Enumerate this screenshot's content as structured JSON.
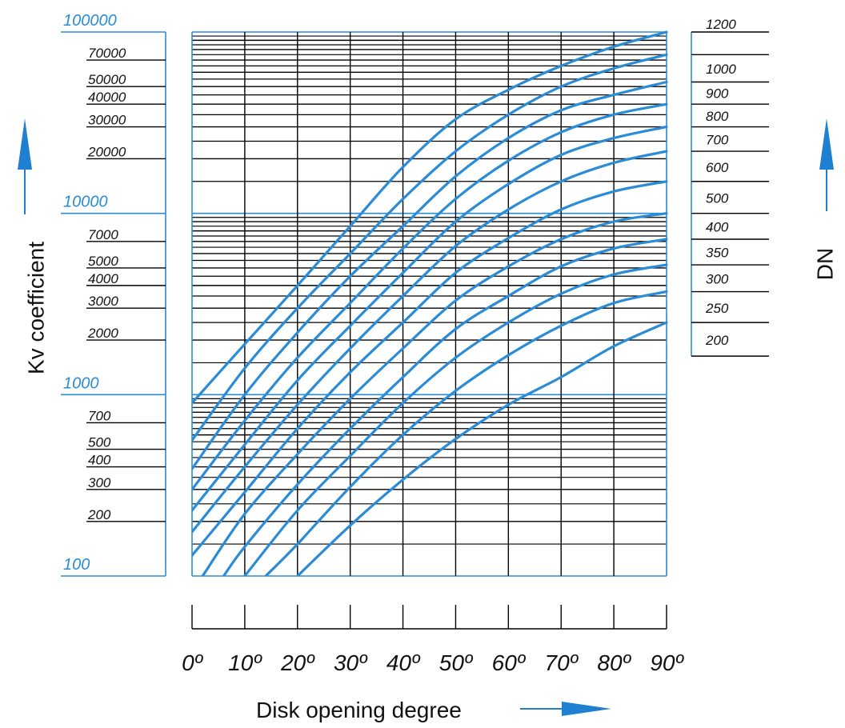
{
  "colors": {
    "curve": "#2a8bd6",
    "decade_line": "#2a8bd6",
    "grid": "#000000",
    "arrow": "#1f7fd0"
  },
  "chart_data": {
    "type": "line",
    "xlabel": "Disk opening degree",
    "ylabel": "Kv coefficient",
    "right_label": "DN",
    "x_scale": "linear",
    "y_scale": "log",
    "xlim": [
      0,
      90
    ],
    "ylim": [
      100,
      100000
    ],
    "x_ticks": [
      0,
      10,
      20,
      30,
      40,
      50,
      60,
      70,
      80,
      90
    ],
    "x_tick_labels": [
      "0º",
      "10º",
      "20º",
      "30º",
      "40º",
      "50º",
      "60º",
      "70º",
      "80º",
      "90º"
    ],
    "y_decade_labels": [
      {
        "value": 100,
        "label": "100"
      },
      {
        "value": 1000,
        "label": "1000"
      },
      {
        "value": 10000,
        "label": "10000"
      },
      {
        "value": 100000,
        "label": "100000"
      }
    ],
    "y_minor_labels": [
      {
        "value": 200,
        "label": "200"
      },
      {
        "value": 300,
        "label": "300"
      },
      {
        "value": 400,
        "label": "400"
      },
      {
        "value": 500,
        "label": "500"
      },
      {
        "value": 700,
        "label": "700"
      },
      {
        "value": 2000,
        "label": "2000"
      },
      {
        "value": 3000,
        "label": "3000"
      },
      {
        "value": 4000,
        "label": "4000"
      },
      {
        "value": 5000,
        "label": "5000"
      },
      {
        "value": 7000,
        "label": "7000"
      },
      {
        "value": 20000,
        "label": "20000"
      },
      {
        "value": 30000,
        "label": "30000"
      },
      {
        "value": 40000,
        "label": "40000"
      },
      {
        "value": 50000,
        "label": "50000"
      },
      {
        "value": 70000,
        "label": "70000"
      }
    ],
    "grid": true,
    "dn_labels": [
      {
        "label": "1200",
        "kv": 100000
      },
      {
        "label": "1000",
        "kv": 75000
      },
      {
        "label": "900",
        "kv": 53000
      },
      {
        "label": "800",
        "kv": 40000
      },
      {
        "label": "700",
        "kv": 30000
      },
      {
        "label": "600",
        "kv": 22000
      },
      {
        "label": "500",
        "kv": 15000
      },
      {
        "label": "400",
        "kv": 10000
      },
      {
        "label": "350",
        "kv": 7200
      },
      {
        "label": "300",
        "kv": 5200
      },
      {
        "label": "250",
        "kv": 3700
      },
      {
        "label": "200",
        "kv": 2500
      }
    ],
    "series": [
      {
        "name": "1200",
        "points": [
          [
            0,
            900
          ],
          [
            10,
            1900
          ],
          [
            20,
            4000
          ],
          [
            30,
            8500
          ],
          [
            40,
            18000
          ],
          [
            50,
            33000
          ],
          [
            60,
            48000
          ],
          [
            70,
            65000
          ],
          [
            80,
            83000
          ],
          [
            90,
            100000
          ]
        ]
      },
      {
        "name": "1000",
        "points": [
          [
            0,
            560
          ],
          [
            10,
            1400
          ],
          [
            20,
            3000
          ],
          [
            30,
            6000
          ],
          [
            40,
            12000
          ],
          [
            50,
            22000
          ],
          [
            60,
            35000
          ],
          [
            70,
            50000
          ],
          [
            80,
            63000
          ],
          [
            90,
            75000
          ]
        ]
      },
      {
        "name": "900",
        "points": [
          [
            0,
            390
          ],
          [
            10,
            1000
          ],
          [
            20,
            2200
          ],
          [
            30,
            4500
          ],
          [
            40,
            8500
          ],
          [
            50,
            16000
          ],
          [
            60,
            26000
          ],
          [
            70,
            37000
          ],
          [
            80,
            45000
          ],
          [
            90,
            53000
          ]
        ]
      },
      {
        "name": "800",
        "points": [
          [
            0,
            300
          ],
          [
            10,
            720
          ],
          [
            20,
            1600
          ],
          [
            30,
            3200
          ],
          [
            40,
            6400
          ],
          [
            50,
            12000
          ],
          [
            60,
            19500
          ],
          [
            70,
            28000
          ],
          [
            80,
            35000
          ],
          [
            90,
            40000
          ]
        ]
      },
      {
        "name": "700",
        "points": [
          [
            0,
            230
          ],
          [
            10,
            530
          ],
          [
            20,
            1200
          ],
          [
            30,
            2400
          ],
          [
            40,
            4700
          ],
          [
            50,
            9000
          ],
          [
            60,
            14500
          ],
          [
            70,
            21000
          ],
          [
            80,
            26000
          ],
          [
            90,
            30000
          ]
        ]
      },
      {
        "name": "600",
        "points": [
          [
            0,
            175
          ],
          [
            10,
            400
          ],
          [
            20,
            880
          ],
          [
            30,
            1800
          ],
          [
            40,
            3500
          ],
          [
            50,
            6600
          ],
          [
            60,
            10500
          ],
          [
            70,
            15000
          ],
          [
            80,
            19000
          ],
          [
            90,
            22000
          ]
        ]
      },
      {
        "name": "500",
        "points": [
          [
            0,
            130
          ],
          [
            10,
            290
          ],
          [
            20,
            650
          ],
          [
            30,
            1330
          ],
          [
            40,
            2500
          ],
          [
            50,
            4700
          ],
          [
            60,
            7300
          ],
          [
            70,
            10500
          ],
          [
            80,
            13200
          ],
          [
            90,
            15000
          ]
        ]
      },
      {
        "name": "400",
        "points": [
          [
            2,
            100
          ],
          [
            10,
            220
          ],
          [
            20,
            470
          ],
          [
            30,
            950
          ],
          [
            40,
            1800
          ],
          [
            50,
            3300
          ],
          [
            60,
            5100
          ],
          [
            70,
            7200
          ],
          [
            80,
            9000
          ],
          [
            90,
            10000
          ]
        ]
      },
      {
        "name": "350",
        "points": [
          [
            6,
            100
          ],
          [
            10,
            145
          ],
          [
            20,
            320
          ],
          [
            30,
            650
          ],
          [
            40,
            1250
          ],
          [
            50,
            2300
          ],
          [
            60,
            3500
          ],
          [
            70,
            5100
          ],
          [
            80,
            6400
          ],
          [
            90,
            7200
          ]
        ]
      },
      {
        "name": "300",
        "points": [
          [
            10,
            100
          ],
          [
            20,
            230
          ],
          [
            30,
            460
          ],
          [
            40,
            900
          ],
          [
            50,
            1600
          ],
          [
            60,
            2500
          ],
          [
            70,
            3600
          ],
          [
            80,
            4600
          ],
          [
            90,
            5200
          ]
        ]
      },
      {
        "name": "250",
        "points": [
          [
            14,
            100
          ],
          [
            20,
            150
          ],
          [
            30,
            310
          ],
          [
            40,
            600
          ],
          [
            50,
            1050
          ],
          [
            60,
            1650
          ],
          [
            70,
            2400
          ],
          [
            80,
            3200
          ],
          [
            90,
            3700
          ]
        ]
      },
      {
        "name": "200",
        "points": [
          [
            20,
            100
          ],
          [
            30,
            190
          ],
          [
            40,
            340
          ],
          [
            50,
            570
          ],
          [
            60,
            880
          ],
          [
            70,
            1250
          ],
          [
            80,
            1850
          ],
          [
            90,
            2500
          ]
        ]
      }
    ]
  }
}
